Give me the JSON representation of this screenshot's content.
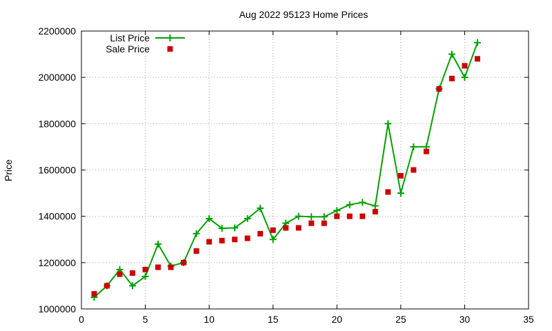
{
  "chart_data": {
    "type": "line",
    "title": "Aug 2022 95123 Home Prices",
    "xlabel": "",
    "ylabel": "Price",
    "xlim": [
      0,
      35
    ],
    "ylim": [
      1000000,
      2200000
    ],
    "xticks": [
      0,
      5,
      10,
      15,
      20,
      25,
      30,
      35
    ],
    "yticks": [
      1000000,
      1200000,
      1400000,
      1600000,
      1800000,
      2000000,
      2200000
    ],
    "grid": true,
    "legend_position": "top-left",
    "series": [
      {
        "name": "List Price",
        "style": "line+cross",
        "color": "#00a000",
        "x": [
          1,
          2,
          3,
          4,
          5,
          6,
          7,
          8,
          9,
          10,
          11,
          12,
          13,
          14,
          15,
          16,
          17,
          18,
          19,
          20,
          21,
          22,
          23,
          24,
          25,
          26,
          27,
          28,
          29,
          30,
          31
        ],
        "y": [
          1050000,
          1100000,
          1170000,
          1100000,
          1140000,
          1280000,
          1185000,
          1200000,
          1325000,
          1390000,
          1348000,
          1350000,
          1390000,
          1435000,
          1300000,
          1370000,
          1400000,
          1398000,
          1398000,
          1425000,
          1450000,
          1460000,
          1445000,
          1800000,
          1500000,
          1700000,
          1700000,
          1950000,
          2100000,
          2000000,
          2150000
        ]
      },
      {
        "name": "Sale Price",
        "style": "square",
        "color": "#cc0000",
        "x": [
          1,
          2,
          3,
          4,
          5,
          6,
          7,
          8,
          9,
          10,
          11,
          12,
          13,
          14,
          15,
          16,
          17,
          18,
          19,
          20,
          21,
          22,
          23,
          24,
          25,
          26,
          27,
          28,
          29,
          30,
          31
        ],
        "y": [
          1065000,
          1100000,
          1150000,
          1155000,
          1170000,
          1180000,
          1180000,
          1200000,
          1250000,
          1290000,
          1295000,
          1300000,
          1305000,
          1325000,
          1340000,
          1350000,
          1350000,
          1370000,
          1370000,
          1400000,
          1400000,
          1400000,
          1420000,
          1505000,
          1575000,
          1600000,
          1680000,
          1950000,
          1995000,
          2050000,
          2080000
        ]
      }
    ]
  }
}
